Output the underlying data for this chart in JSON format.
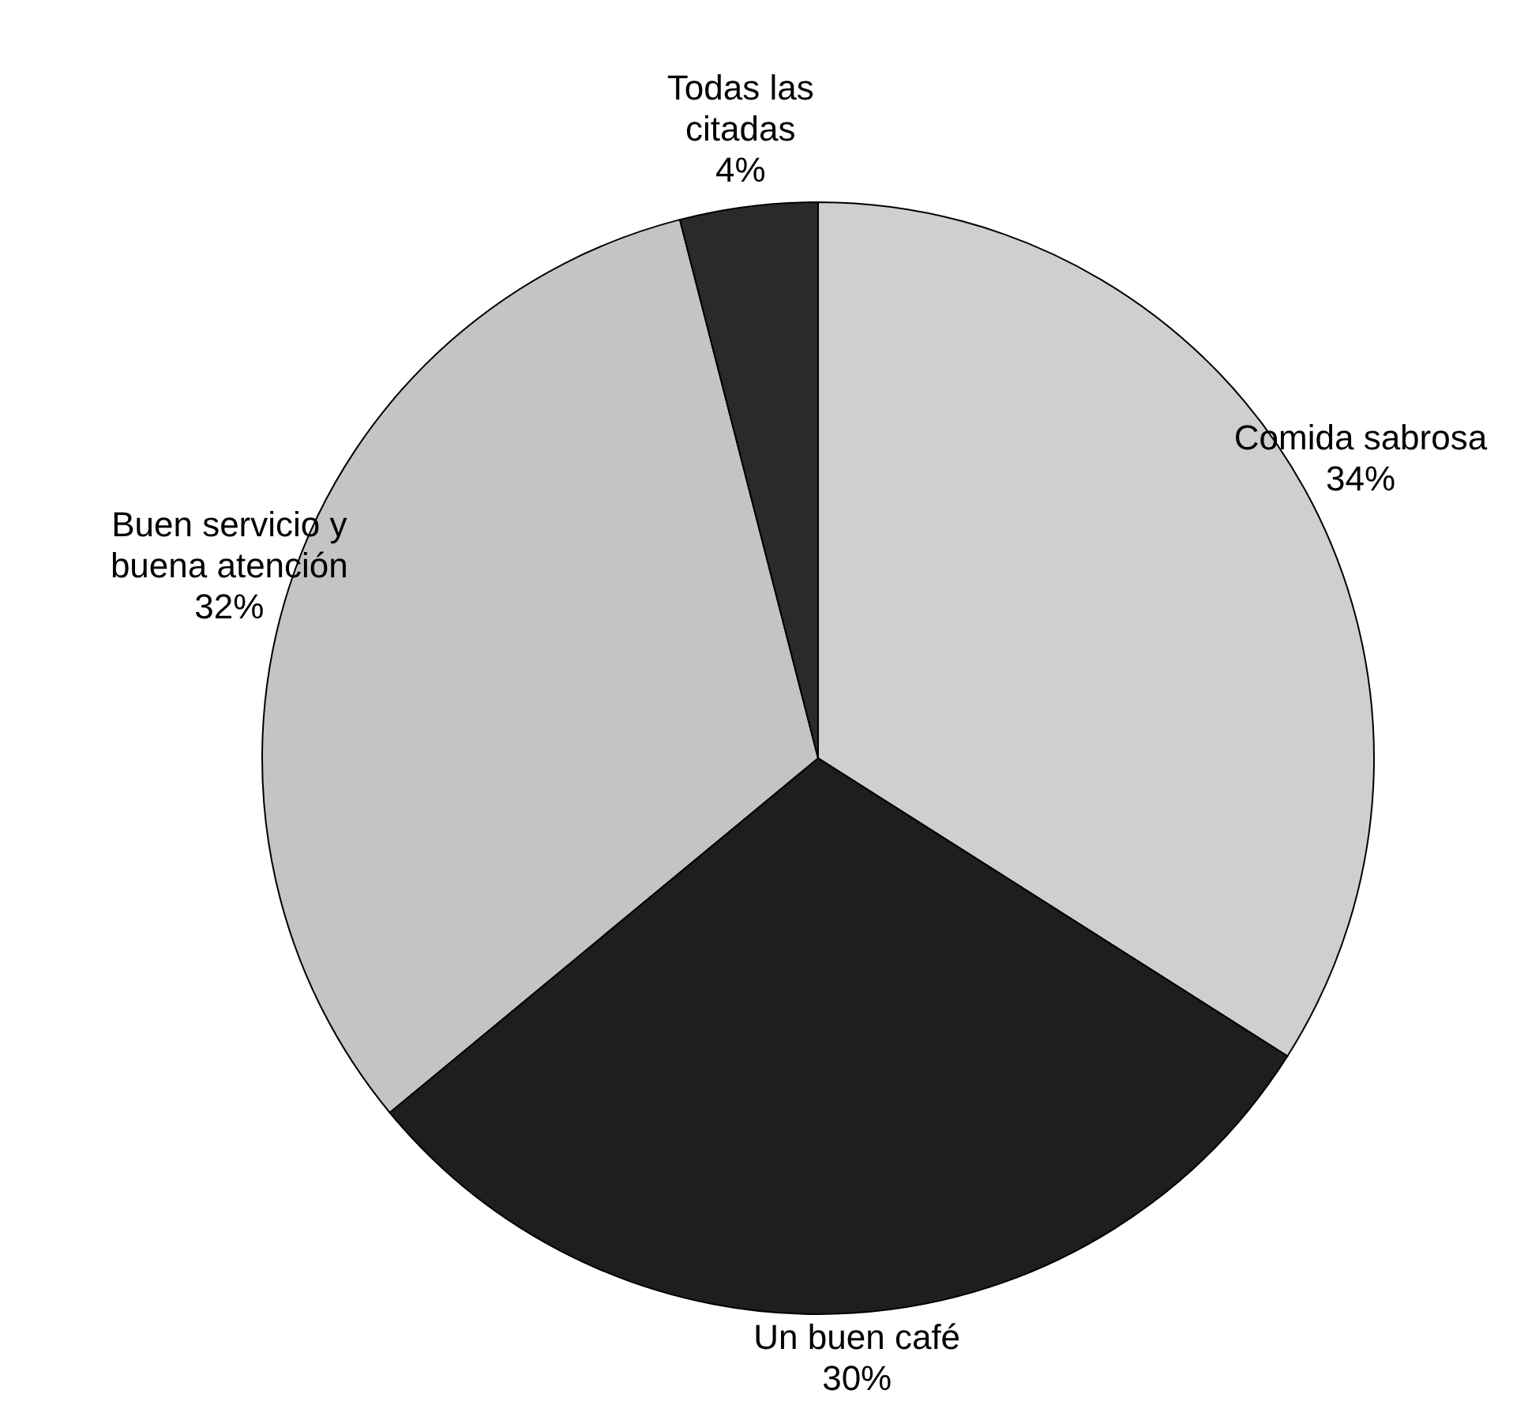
{
  "chart_data": {
    "type": "pie",
    "categories": [
      "Comida sabrosa",
      "Un buen café",
      "Buen servicio y buena atención",
      "Todas las citadas"
    ],
    "values": [
      34,
      30,
      32,
      4
    ],
    "value_labels": [
      "34%",
      "30%",
      "32%",
      "4%"
    ],
    "colors": [
      "#cfcfcf",
      "#1e1e1e",
      "#c4c4c4",
      "#2a2a2a"
    ],
    "legend": false
  }
}
